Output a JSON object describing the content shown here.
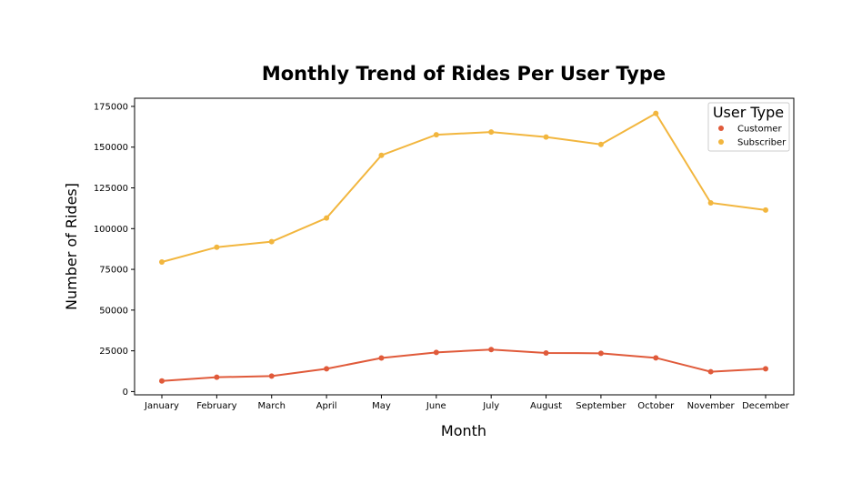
{
  "chart_data": {
    "type": "line",
    "title": "Monthly Trend of Rides Per User Type",
    "xlabel": "Month",
    "ylabel": "Number of Rides]",
    "categories": [
      "January",
      "February",
      "March",
      "April",
      "May",
      "June",
      "July",
      "August",
      "September",
      "October",
      "November",
      "December"
    ],
    "ylim": [
      -2000,
      180000
    ],
    "yticks": [
      0,
      25000,
      50000,
      75000,
      100000,
      125000,
      150000,
      175000
    ],
    "ytick_labels": [
      "0",
      "25000",
      "50000",
      "75000",
      "100000",
      "125000",
      "150000",
      "175000"
    ],
    "grid": false,
    "legend": {
      "title": "User Type",
      "placement": "top-right"
    },
    "series": [
      {
        "name": "Customer",
        "color": "#e05a3a",
        "values": [
          6500,
          8800,
          9500,
          14000,
          20600,
          24000,
          25800,
          23700,
          23500,
          20700,
          12200,
          14000
        ]
      },
      {
        "name": "Subscriber",
        "color": "#f2b63e",
        "values": [
          79500,
          88600,
          92000,
          106500,
          145000,
          157600,
          159300,
          156200,
          151700,
          170700,
          115800,
          111400
        ]
      }
    ]
  }
}
